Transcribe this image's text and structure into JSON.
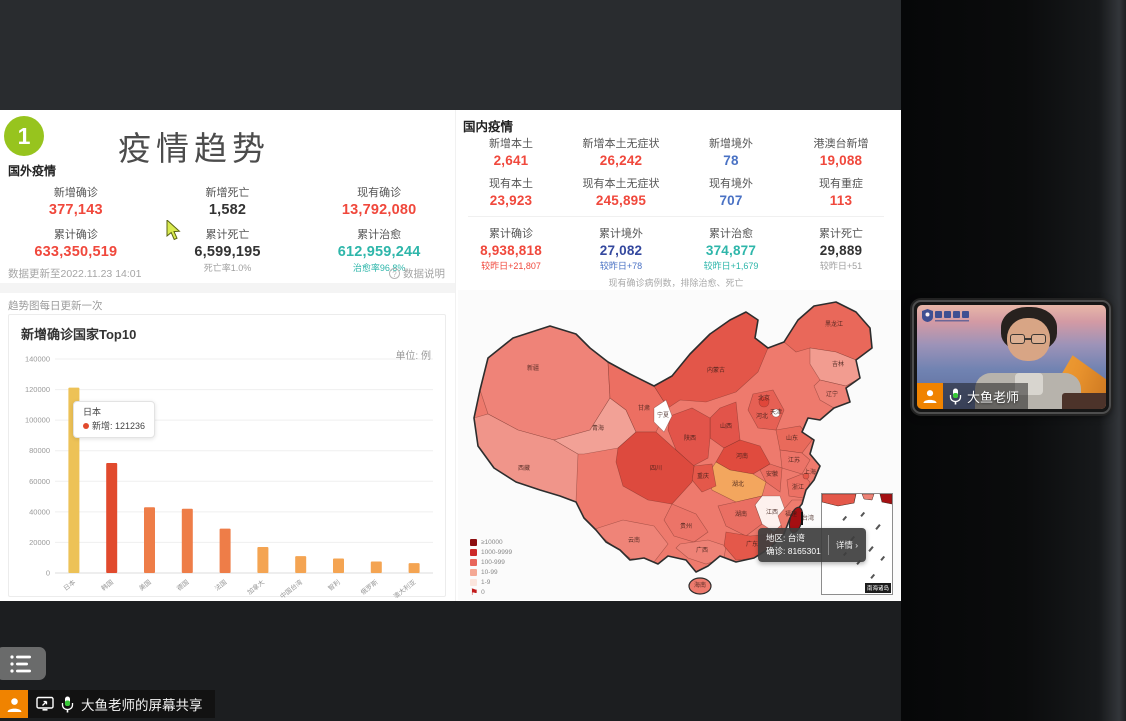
{
  "dashboard": {
    "badge": "1",
    "title": "疫情趋势",
    "foreign": {
      "section_label": "国外疫情",
      "stats": [
        {
          "label": "新增确诊",
          "value": "377,143",
          "tone": "red"
        },
        {
          "label": "新增死亡",
          "value": "1,582",
          "tone": "dark"
        },
        {
          "label": "现有确诊",
          "value": "13,792,080",
          "tone": "red"
        },
        {
          "label": "累计确诊",
          "value": "633,350,519",
          "tone": "red"
        },
        {
          "label": "累计死亡",
          "value": "6,599,195",
          "tone": "dark",
          "sub": "死亡率1.0%",
          "sub_tone": "gray"
        },
        {
          "label": "累计治愈",
          "value": "612,959,244",
          "tone": "teal",
          "sub": "治愈率96.8%",
          "sub_tone": "teal"
        }
      ],
      "update_note": "数据更新至2022.11.23 14:01",
      "data_info_label": "数据说明",
      "trend_note": "趋势图每日更新一次"
    },
    "domestic": {
      "section_label": "国内疫情",
      "stats": [
        {
          "label": "新增本土",
          "value": "2,641",
          "tone": "red"
        },
        {
          "label": "新增本土无症状",
          "value": "26,242",
          "tone": "red"
        },
        {
          "label": "新增境外",
          "value": "78",
          "tone": "blue"
        },
        {
          "label": "港澳台新增",
          "value": "19,088",
          "tone": "red"
        },
        {
          "label": "现有本土",
          "value": "23,923",
          "tone": "red"
        },
        {
          "label": "现有本土无症状",
          "value": "245,895",
          "tone": "red"
        },
        {
          "label": "现有境外",
          "value": "707",
          "tone": "blue"
        },
        {
          "label": "现有重症",
          "value": "113",
          "tone": "red"
        },
        {
          "label": "累计确诊",
          "value": "8,938,818",
          "tone": "red",
          "sub": "较昨日+21,807",
          "sub_tone": "red"
        },
        {
          "label": "累计境外",
          "value": "27,082",
          "tone": "navy",
          "sub": "较昨日+78",
          "sub_tone": "blue"
        },
        {
          "label": "累计治愈",
          "value": "374,877",
          "tone": "teal",
          "sub": "较昨日+1,679",
          "sub_tone": "teal"
        },
        {
          "label": "累计死亡",
          "value": "29,889",
          "tone": "dark",
          "sub": "较昨日+51",
          "sub_tone": "gray"
        }
      ]
    },
    "map": {
      "note": "现有确诊病例数，排除治愈、死亡",
      "legend": [
        {
          "label": "≥10000",
          "color": "#8c0e10"
        },
        {
          "label": "1000-9999",
          "color": "#cc2929"
        },
        {
          "label": "100-999",
          "color": "#e8655a"
        },
        {
          "label": "10-99",
          "color": "#f4a894"
        },
        {
          "label": "1-9",
          "color": "#fbe5dd"
        },
        {
          "label": "0",
          "color": "#ffffff",
          "flag": true
        }
      ],
      "tooltip": {
        "region": "地区: 台湾",
        "confirmed": "确诊: 8165301",
        "detail": "详情 ›"
      },
      "inset_label": "南海诸岛",
      "provinces": [
        "新疆",
        "西藏",
        "青海",
        "甘肃",
        "宁夏",
        "内蒙古",
        "黑龙江",
        "吉林",
        "辽宁",
        "北京",
        "天津",
        "河北",
        "山西",
        "山东",
        "陕西",
        "河南",
        "江苏",
        "安徽",
        "上海",
        "浙江",
        "湖北",
        "江西",
        "湖南",
        "重庆",
        "四川",
        "贵州",
        "云南",
        "广西",
        "广东",
        "福建",
        "海南",
        "台湾"
      ]
    }
  },
  "chart_data": {
    "type": "bar",
    "title": "新增确诊国家Top10",
    "unit": "单位: 例",
    "categories": [
      "日本",
      "韩国",
      "美国",
      "德国",
      "法国",
      "加拿大",
      "中国台湾",
      "智利",
      "俄罗斯",
      "澳大利亚"
    ],
    "values": [
      121236,
      72000,
      43000,
      42000,
      29000,
      17000,
      11000,
      9500,
      7500,
      6500
    ],
    "colors": [
      "#edc257",
      "#e14a2d",
      "#ee7d48",
      "#ee7d48",
      "#ee7d48",
      "#f4a452",
      "#f4a452",
      "#f4a452",
      "#f4a452",
      "#f4a452"
    ],
    "ylim": [
      0,
      140000
    ],
    "ytick_step": 20000,
    "grid": true,
    "tooltip": {
      "title": "日本",
      "text": "新增: 121236",
      "dot_color": "#e14a2d"
    }
  },
  "webcam": {
    "name": "大鱼老师"
  },
  "share_bar": {
    "label": "大鱼老师的屏幕共享"
  },
  "colors": {
    "red": "#f0483c",
    "teal": "#2eb6aa",
    "blue": "#4a72c4",
    "navy": "#34489e",
    "dark": "#333333",
    "gray": "#a0a0a0",
    "badge_green": "#97c41e",
    "accent_orange": "#f08300"
  }
}
